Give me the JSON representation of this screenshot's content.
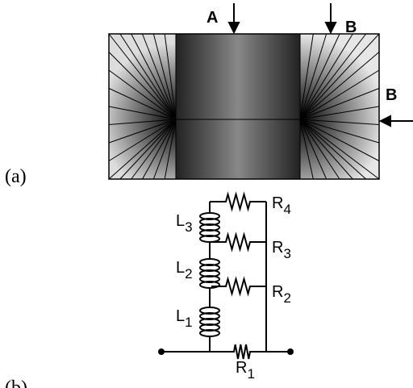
{
  "arrows": {
    "a": "A",
    "b_top": "B",
    "b_side": "B"
  },
  "panels": {
    "a": "(a)",
    "b": "(b)"
  },
  "inductors": [
    {
      "main": "L",
      "sub": "3"
    },
    {
      "main": "L",
      "sub": "2"
    },
    {
      "main": "L",
      "sub": "1"
    }
  ],
  "resistors": [
    {
      "main": "R",
      "sub": "4"
    },
    {
      "main": "R",
      "sub": "3"
    },
    {
      "main": "R",
      "sub": "2"
    },
    {
      "main": "R",
      "sub": "1"
    }
  ]
}
